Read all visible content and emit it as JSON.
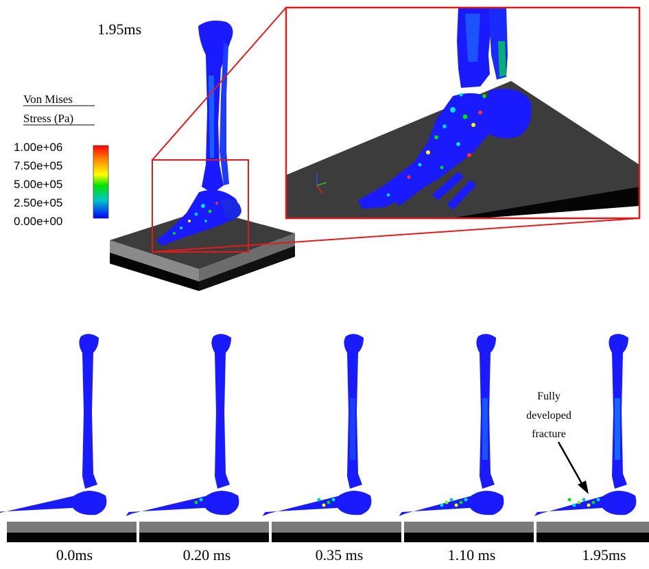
{
  "main_view": {
    "time_label": "1.95ms"
  },
  "legend": {
    "title_line1": "Von Mises",
    "title_line2": "Stress (Pa)",
    "ticks": [
      "1.00e+06",
      "7.50e+05",
      "5.00e+05",
      "2.50e+05",
      "0.00e+00"
    ],
    "colormap": [
      "#ff0000",
      "#ff8c00",
      "#ffff00",
      "#00e000",
      "#00c8c8",
      "#0000ff"
    ]
  },
  "annotation": {
    "line1": "Fully",
    "line2": "developed",
    "line3": "fracture"
  },
  "frames": [
    {
      "label": "0.0ms",
      "stress_level": 0.0
    },
    {
      "label": "0.20 ms",
      "stress_level": 0.15
    },
    {
      "label": "0.35 ms",
      "stress_level": 0.35
    },
    {
      "label": "1.10 ms",
      "stress_level": 0.55
    },
    {
      "label": "1.95ms",
      "stress_level": 0.7
    }
  ],
  "colors": {
    "bone": "#1a1aff",
    "zoom_frame": "#e01b1b",
    "plate_top": "#3c3c3c",
    "plate_mid": "#8a8a8a",
    "plate_base": "#050505"
  }
}
